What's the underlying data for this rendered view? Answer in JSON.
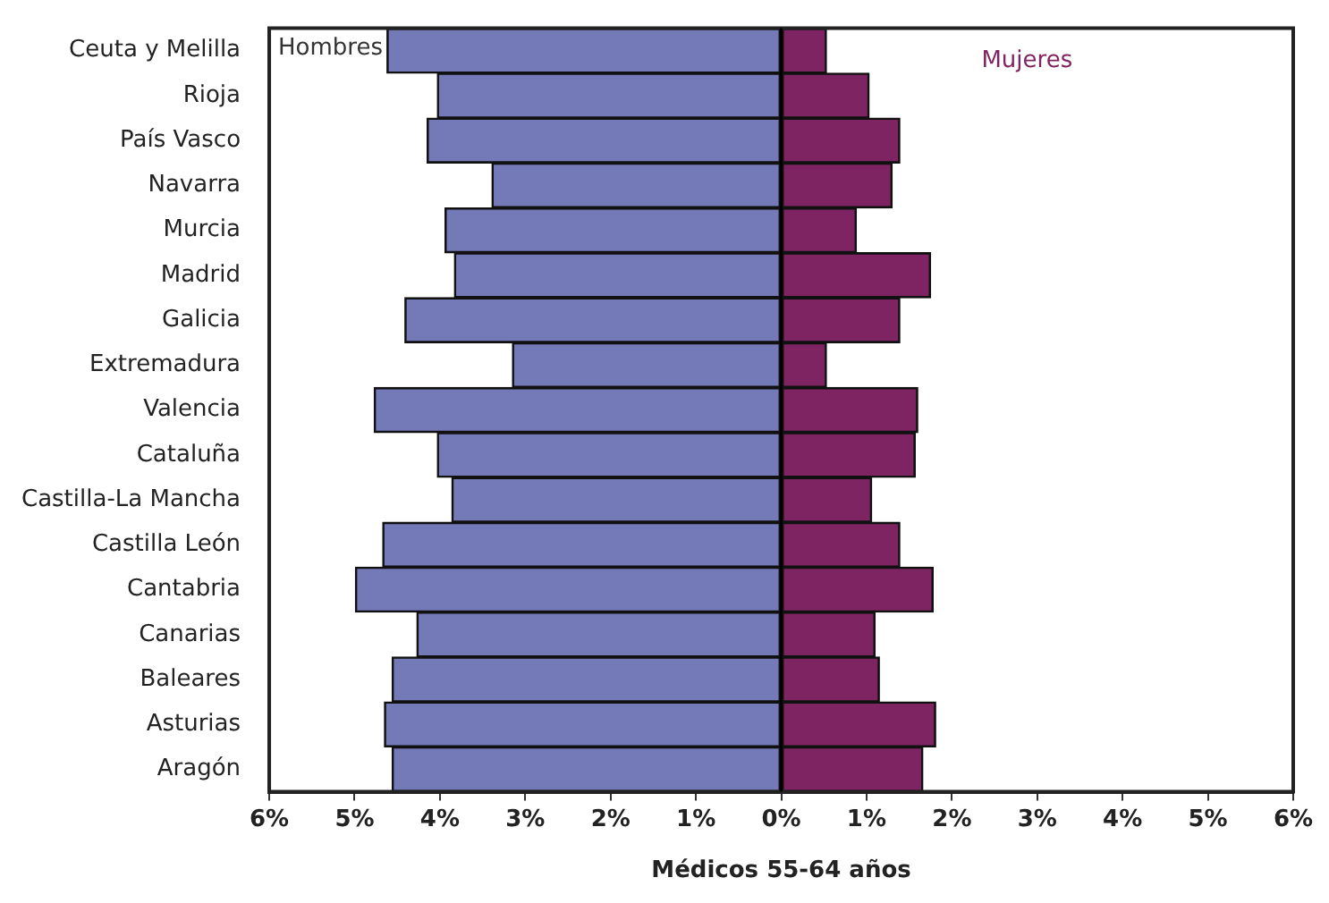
{
  "chart_data": {
    "type": "bar",
    "orientation": "horizontal",
    "stacked": true,
    "xlabel": "Médicos 55-64 años",
    "categories": [
      "Ceuta y Melilla",
      "Rioja",
      "País Vasco",
      "Navarra",
      "Murcia",
      "Madrid",
      "Galicia",
      "Extremadura",
      "Valencia",
      "Cataluña",
      "Castilla-La Mancha",
      "Castilla León",
      "Cantabria",
      "Canarias",
      "Baleares",
      "Asturias",
      "Aragón"
    ],
    "series": [
      {
        "name": "Hombres",
        "color": "#7479b8",
        "values": [
          -4.62,
          -4.03,
          -4.15,
          -3.39,
          -3.94,
          -3.83,
          -4.41,
          -3.15,
          -4.77,
          -4.03,
          -3.86,
          -4.67,
          -4.99,
          -4.27,
          -4.56,
          -4.65,
          -4.56
        ]
      },
      {
        "name": "Mujeres",
        "color": "#7f2462",
        "values": [
          0.53,
          1.03,
          1.39,
          1.3,
          0.88,
          1.75,
          1.39,
          0.53,
          1.6,
          1.57,
          1.06,
          1.39,
          1.78,
          1.1,
          1.15,
          1.81,
          1.66
        ]
      }
    ],
    "xlim": [
      -6,
      6
    ],
    "xticks": [
      {
        "value": -6,
        "label": "6%"
      },
      {
        "value": -5,
        "label": "5%"
      },
      {
        "value": -4,
        "label": "4%"
      },
      {
        "value": -3,
        "label": "3%"
      },
      {
        "value": -2,
        "label": "2%"
      },
      {
        "value": -1,
        "label": "1%"
      },
      {
        "value": 0,
        "label": "0%"
      },
      {
        "value": 1,
        "label": "1%"
      },
      {
        "value": 2,
        "label": "2%"
      },
      {
        "value": 3,
        "label": "3%"
      },
      {
        "value": 4,
        "label": "4%"
      },
      {
        "value": 5,
        "label": "5%"
      },
      {
        "value": 6,
        "label": "6%"
      }
    ],
    "ref_lines": [
      {
        "axis": "x",
        "value": 0,
        "color": "#000000"
      }
    ],
    "grid": false,
    "legend": false
  }
}
